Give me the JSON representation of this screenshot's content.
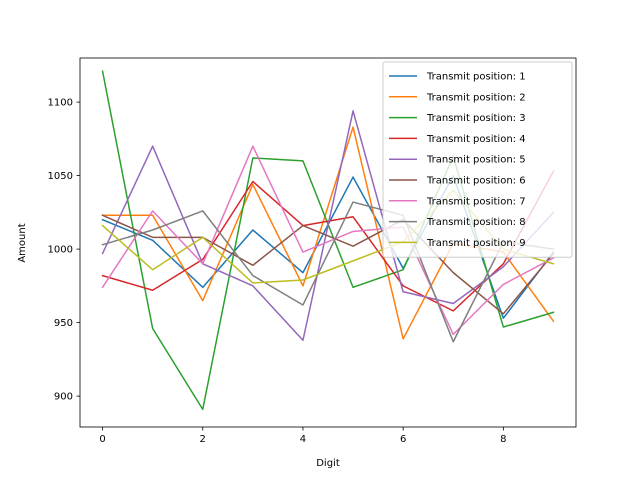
{
  "chart_data": {
    "type": "line",
    "title": "",
    "xlabel": "Digit",
    "ylabel": "Amount",
    "xlim": [
      -0.45,
      9.45
    ],
    "ylim": [
      879,
      1130
    ],
    "xticks": [
      0,
      2,
      4,
      6,
      8
    ],
    "yticks": [
      900,
      950,
      1000,
      1050,
      1100
    ],
    "grid": false,
    "legend_position": "top-right",
    "x": [
      0,
      1,
      2,
      3,
      4,
      5,
      6,
      7,
      8,
      9
    ],
    "series": [
      {
        "name": "Transmit position: 1",
        "color": "#1f77b4",
        "values": [
          1020,
          1006,
          974,
          1013,
          984,
          1049,
          987,
          1050,
          953,
          998
        ]
      },
      {
        "name": "Transmit position: 2",
        "color": "#ff7f0e",
        "values": [
          1023,
          1023,
          965,
          1044,
          975,
          1083,
          939,
          1004,
          998,
          951
        ]
      },
      {
        "name": "Transmit position: 3",
        "color": "#2ca02c",
        "values": [
          1121,
          946,
          891,
          1062,
          1060,
          974,
          986,
          1063,
          947,
          957
        ]
      },
      {
        "name": "Transmit position: 4",
        "color": "#d62728",
        "values": [
          982,
          972,
          993,
          1046,
          1016,
          1022,
          975,
          958,
          990,
          1053
        ]
      },
      {
        "name": "Transmit position: 5",
        "color": "#9467bd",
        "values": [
          997,
          1070,
          990,
          975,
          938,
          1094,
          971,
          963,
          988,
          1025
        ]
      },
      {
        "name": "Transmit position: 6",
        "color": "#8c564b",
        "values": [
          1023,
          1008,
          1008,
          989,
          1016,
          1002,
          1020,
          984,
          956,
          997
        ]
      },
      {
        "name": "Transmit position: 7",
        "color": "#e377c2",
        "values": [
          974,
          1026,
          990,
          1070,
          998,
          1012,
          1015,
          942,
          976,
          994
        ]
      },
      {
        "name": "Transmit position: 8",
        "color": "#7f7f7f",
        "values": [
          1003,
          1013,
          1026,
          982,
          962,
          1032,
          1023,
          937,
          1005,
          1000
        ]
      },
      {
        "name": "Transmit position: 9",
        "color": "#bcbd22",
        "values": [
          1016,
          986,
          1008,
          977,
          979,
          992,
          1005,
          1040,
          1000,
          990
        ]
      }
    ]
  }
}
